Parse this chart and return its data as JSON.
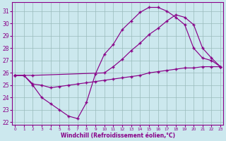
{
  "xlabel": "Windchill (Refroidissement éolien,°C)",
  "xlim": [
    -0.3,
    23.3
  ],
  "ylim": [
    21.8,
    31.7
  ],
  "yticks": [
    22,
    23,
    24,
    25,
    26,
    27,
    28,
    29,
    30,
    31
  ],
  "xticks": [
    0,
    1,
    2,
    3,
    4,
    5,
    6,
    7,
    8,
    9,
    10,
    11,
    12,
    13,
    14,
    15,
    16,
    17,
    18,
    19,
    20,
    21,
    22,
    23
  ],
  "background_color": "#cce8ee",
  "grid_color": "#99bbbb",
  "line_color": "#880088",
  "curve1_x": [
    0,
    1,
    2,
    3,
    4,
    5,
    6,
    7,
    8,
    9,
    10,
    11,
    12,
    13,
    14,
    15,
    16,
    17,
    18,
    19,
    20,
    21,
    22,
    23
  ],
  "curve1_y": [
    25.8,
    25.8,
    25.0,
    24.0,
    23.5,
    23.0,
    22.5,
    22.3,
    23.6,
    25.9,
    27.5,
    28.3,
    29.5,
    30.2,
    30.9,
    31.3,
    31.3,
    31.0,
    30.5,
    29.9,
    28.0,
    27.2,
    27.0,
    26.5
  ],
  "curve2_x": [
    0,
    2,
    10,
    11,
    12,
    13,
    14,
    15,
    16,
    17,
    18,
    19,
    20,
    21,
    22,
    23
  ],
  "curve2_y": [
    25.8,
    25.8,
    26.0,
    26.5,
    27.1,
    27.8,
    28.4,
    29.1,
    29.6,
    30.2,
    30.7,
    30.5,
    29.9,
    28.0,
    27.2,
    26.5
  ],
  "curve3_x": [
    0,
    1,
    2,
    3,
    4,
    5,
    6,
    7,
    8,
    9,
    10,
    11,
    12,
    13,
    14,
    15,
    16,
    17,
    18,
    19,
    20,
    21,
    22,
    23
  ],
  "curve3_y": [
    25.8,
    25.8,
    25.1,
    25.0,
    24.8,
    24.9,
    25.0,
    25.1,
    25.2,
    25.3,
    25.4,
    25.5,
    25.6,
    25.7,
    25.8,
    26.0,
    26.1,
    26.2,
    26.3,
    26.4,
    26.4,
    26.5,
    26.5,
    26.5
  ]
}
